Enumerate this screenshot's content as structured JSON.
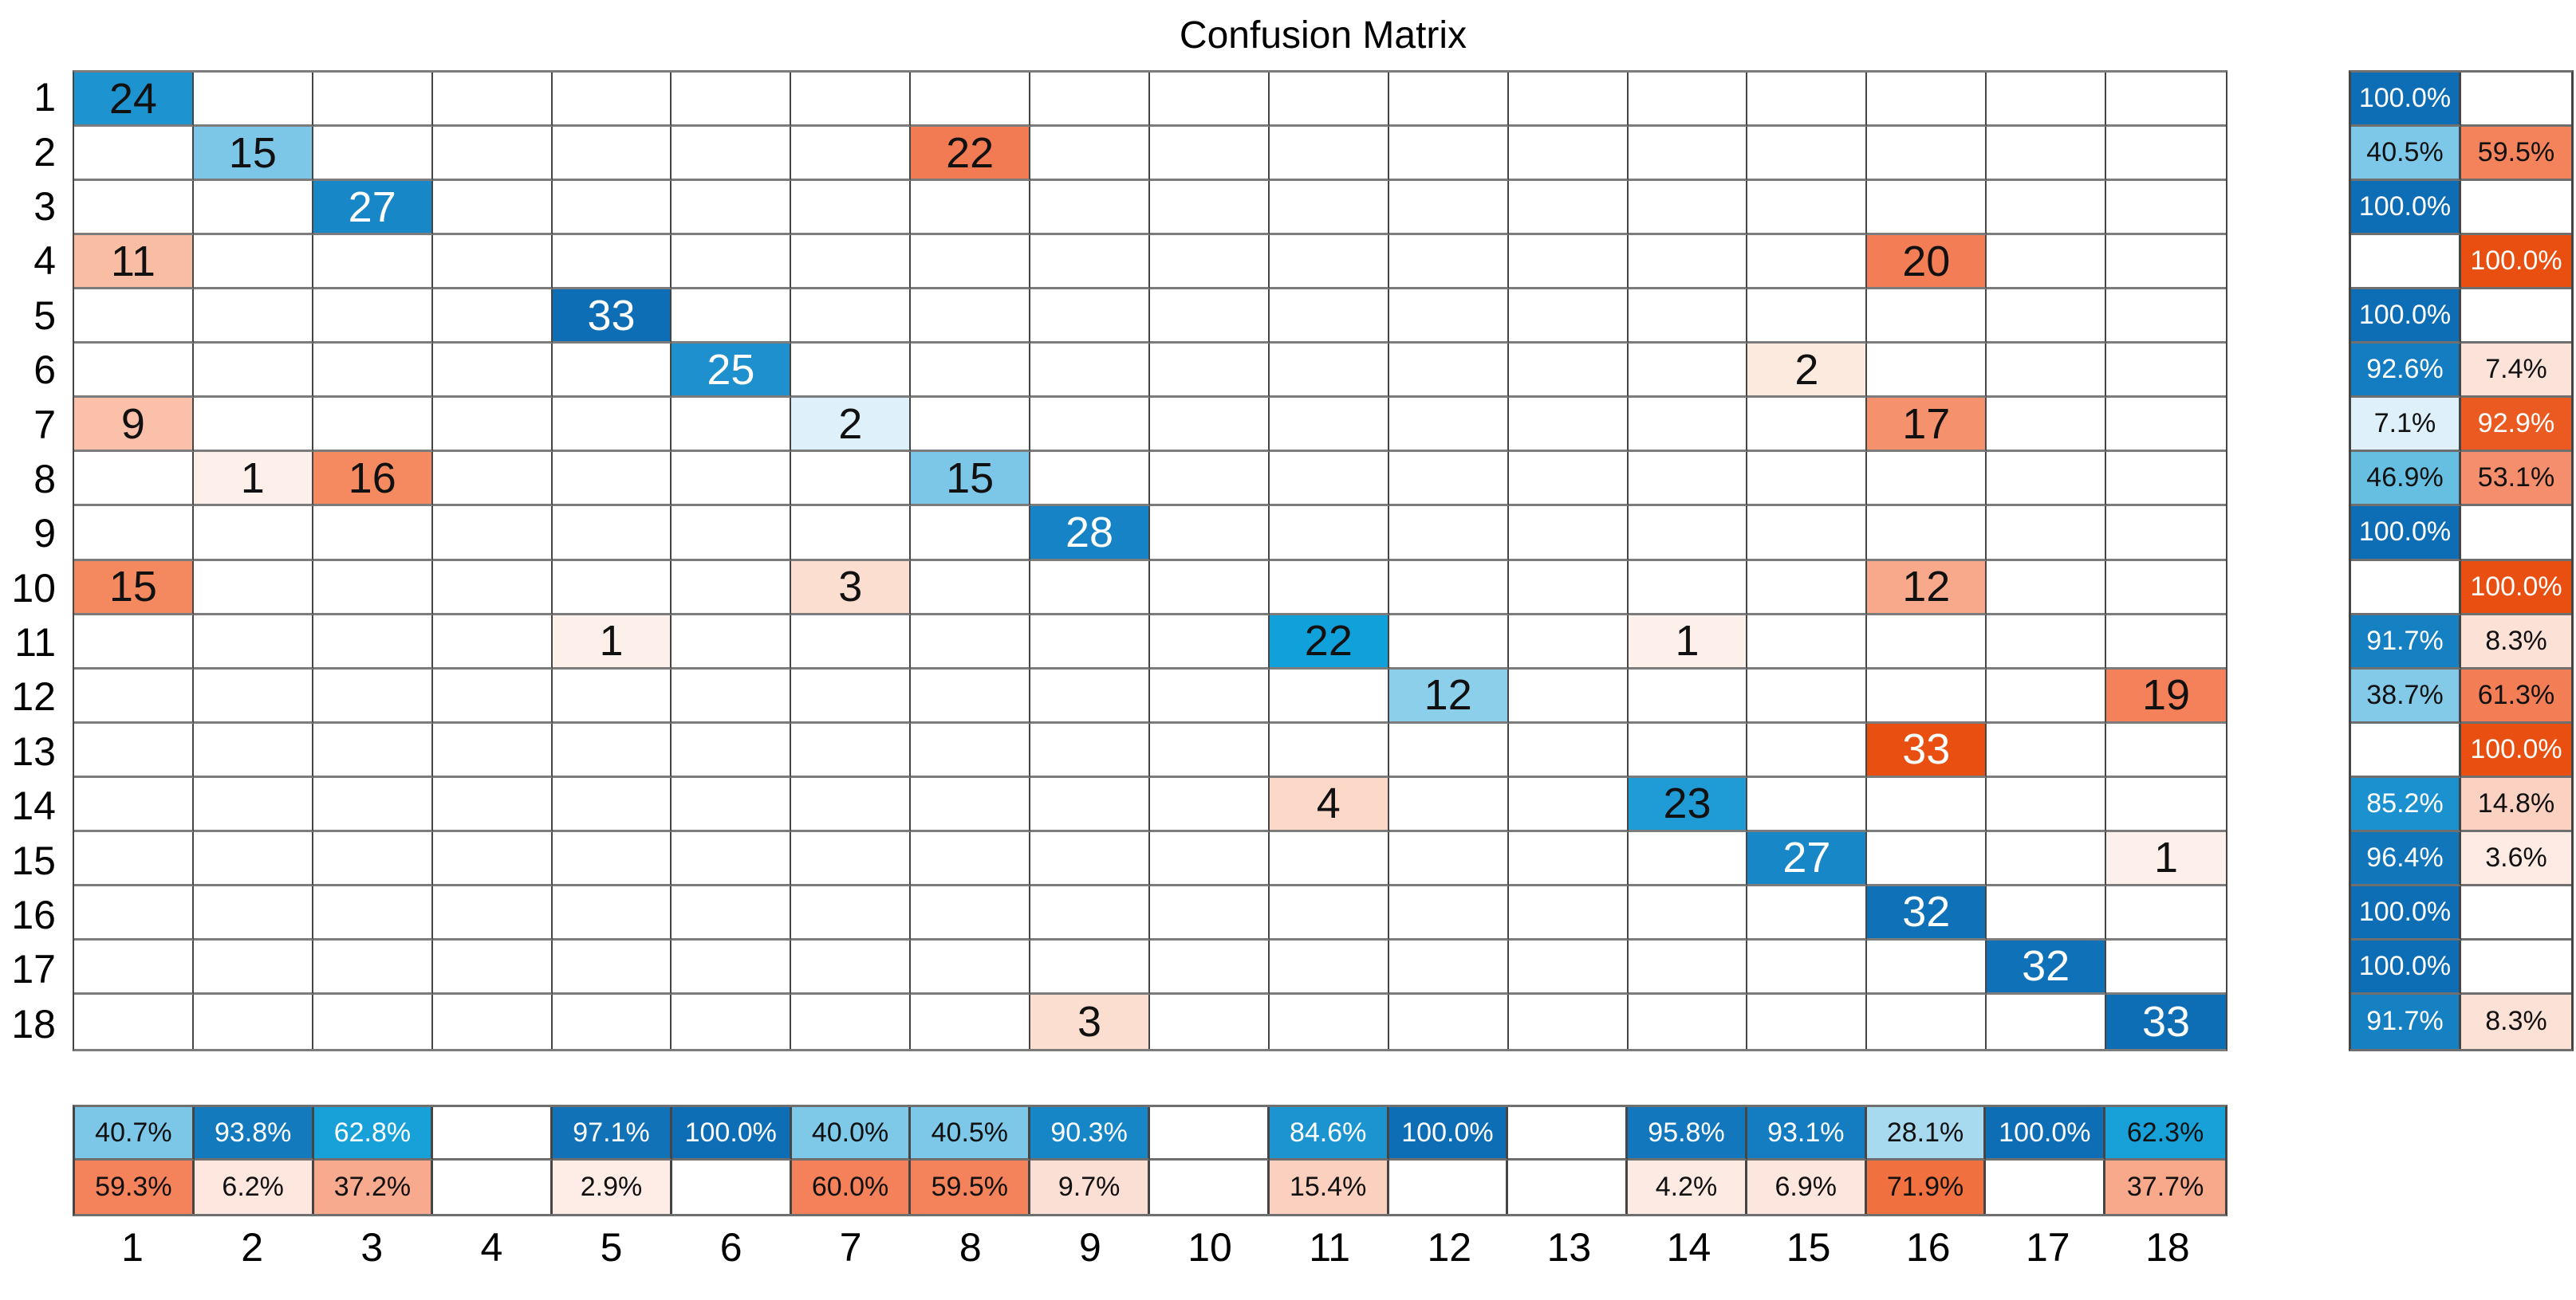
{
  "title": "Confusion Matrix",
  "palette": {
    "diagonal_dark_blue": "#0d6db5",
    "off_diagonal_red": "#e94f10",
    "blank_cell": "#ffffff",
    "grid_line_vertical": "#454545",
    "grid_line_horizontal": "#7c7c7c",
    "text_dark": "#111111",
    "text_light": "#ffffff"
  },
  "chart_data": {
    "type": "heatmap",
    "title": "Confusion Matrix",
    "n_classes": 18,
    "classes": [
      "1",
      "2",
      "3",
      "4",
      "5",
      "6",
      "7",
      "8",
      "9",
      "10",
      "11",
      "12",
      "13",
      "14",
      "15",
      "16",
      "17",
      "18"
    ],
    "max_count": 33,
    "legend_position": "none",
    "grid": "on",
    "matrix_cells": [
      {
        "row": 1,
        "col": 1,
        "value": 24,
        "bg": "#1d94d0",
        "fg": "#111111"
      },
      {
        "row": 2,
        "col": 2,
        "value": 15,
        "bg": "#7cc7e8",
        "fg": "#111111"
      },
      {
        "row": 2,
        "col": 8,
        "value": 22,
        "bg": "#f37b53",
        "fg": "#111111"
      },
      {
        "row": 3,
        "col": 3,
        "value": 27,
        "bg": "#1787c8",
        "fg": "#ffffff"
      },
      {
        "row": 4,
        "col": 1,
        "value": 11,
        "bg": "#f9bda4",
        "fg": "#111111"
      },
      {
        "row": 4,
        "col": 16,
        "value": 20,
        "bg": "#f37e55",
        "fg": "#111111"
      },
      {
        "row": 5,
        "col": 5,
        "value": 33,
        "bg": "#0d6db5",
        "fg": "#ffffff"
      },
      {
        "row": 6,
        "col": 6,
        "value": 25,
        "bg": "#1e90cd",
        "fg": "#ffffff"
      },
      {
        "row": 6,
        "col": 15,
        "value": 2,
        "bg": "#fdeade",
        "fg": "#111111"
      },
      {
        "row": 7,
        "col": 1,
        "value": 9,
        "bg": "#fac0a9",
        "fg": "#111111"
      },
      {
        "row": 7,
        "col": 7,
        "value": 2,
        "bg": "#def0f9",
        "fg": "#111111"
      },
      {
        "row": 7,
        "col": 16,
        "value": 17,
        "bg": "#f6916e",
        "fg": "#111111"
      },
      {
        "row": 8,
        "col": 2,
        "value": 1,
        "bg": "#fdefe9",
        "fg": "#111111"
      },
      {
        "row": 8,
        "col": 3,
        "value": 16,
        "bg": "#f58a61",
        "fg": "#111111"
      },
      {
        "row": 8,
        "col": 8,
        "value": 15,
        "bg": "#7cc7e8",
        "fg": "#111111"
      },
      {
        "row": 9,
        "col": 9,
        "value": 28,
        "bg": "#1583c5",
        "fg": "#ffffff"
      },
      {
        "row": 10,
        "col": 1,
        "value": 15,
        "bg": "#f4885f",
        "fg": "#111111"
      },
      {
        "row": 10,
        "col": 7,
        "value": 3,
        "bg": "#fcded1",
        "fg": "#111111"
      },
      {
        "row": 10,
        "col": 16,
        "value": 12,
        "bg": "#f8a98c",
        "fg": "#111111"
      },
      {
        "row": 11,
        "col": 5,
        "value": 1,
        "bg": "#fdefe9",
        "fg": "#111111"
      },
      {
        "row": 11,
        "col": 11,
        "value": 22,
        "bg": "#11a1da",
        "fg": "#111111"
      },
      {
        "row": 11,
        "col": 14,
        "value": 1,
        "bg": "#fdefe9",
        "fg": "#111111"
      },
      {
        "row": 12,
        "col": 12,
        "value": 12,
        "bg": "#8ccfeb",
        "fg": "#111111"
      },
      {
        "row": 12,
        "col": 18,
        "value": 19,
        "bg": "#f48159",
        "fg": "#111111"
      },
      {
        "row": 13,
        "col": 16,
        "value": 33,
        "bg": "#e94f10",
        "fg": "#ffffff"
      },
      {
        "row": 14,
        "col": 11,
        "value": 4,
        "bg": "#fbd8c8",
        "fg": "#111111"
      },
      {
        "row": 14,
        "col": 14,
        "value": 23,
        "bg": "#1f9cd6",
        "fg": "#111111"
      },
      {
        "row": 15,
        "col": 15,
        "value": 27,
        "bg": "#1787c8",
        "fg": "#ffffff"
      },
      {
        "row": 15,
        "col": 18,
        "value": 1,
        "bg": "#fdefe9",
        "fg": "#111111"
      },
      {
        "row": 16,
        "col": 16,
        "value": 32,
        "bg": "#0f72b9",
        "fg": "#ffffff"
      },
      {
        "row": 17,
        "col": 17,
        "value": 32,
        "bg": "#0f72b9",
        "fg": "#ffffff"
      },
      {
        "row": 18,
        "col": 9,
        "value": 3,
        "bg": "#fcded1",
        "fg": "#111111"
      },
      {
        "row": 18,
        "col": 18,
        "value": 33,
        "bg": "#0d6db5",
        "fg": "#ffffff"
      }
    ],
    "row_summary": [
      {
        "row": 1,
        "cells": [
          {
            "text": "100.0%",
            "bg": "#0d6db5",
            "fg": "#ffffff"
          },
          {
            "text": "",
            "bg": "#ffffff",
            "fg": "#111111"
          }
        ]
      },
      {
        "row": 2,
        "cells": [
          {
            "text": "40.5%",
            "bg": "#7dc8e8",
            "fg": "#111111"
          },
          {
            "text": "59.5%",
            "bg": "#f4825b",
            "fg": "#111111"
          }
        ]
      },
      {
        "row": 3,
        "cells": [
          {
            "text": "100.0%",
            "bg": "#0d6db5",
            "fg": "#ffffff"
          },
          {
            "text": "",
            "bg": "#ffffff",
            "fg": "#111111"
          }
        ]
      },
      {
        "row": 4,
        "cells": [
          {
            "text": "",
            "bg": "#ffffff",
            "fg": "#111111"
          },
          {
            "text": "100.0%",
            "bg": "#e94f10",
            "fg": "#ffffff"
          }
        ]
      },
      {
        "row": 5,
        "cells": [
          {
            "text": "100.0%",
            "bg": "#0d6db5",
            "fg": "#ffffff"
          },
          {
            "text": "",
            "bg": "#ffffff",
            "fg": "#111111"
          }
        ]
      },
      {
        "row": 6,
        "cells": [
          {
            "text": "92.6%",
            "bg": "#147dc1",
            "fg": "#ffffff"
          },
          {
            "text": "7.4%",
            "bg": "#fce3da",
            "fg": "#111111"
          }
        ]
      },
      {
        "row": 7,
        "cells": [
          {
            "text": "7.1%",
            "bg": "#def0f9",
            "fg": "#111111"
          },
          {
            "text": "92.9%",
            "bg": "#eb5a20",
            "fg": "#ffffff"
          }
        ]
      },
      {
        "row": 8,
        "cells": [
          {
            "text": "46.9%",
            "bg": "#66bee1",
            "fg": "#111111"
          },
          {
            "text": "53.1%",
            "bg": "#f58e6c",
            "fg": "#111111"
          }
        ]
      },
      {
        "row": 9,
        "cells": [
          {
            "text": "100.0%",
            "bg": "#0d6db5",
            "fg": "#ffffff"
          },
          {
            "text": "",
            "bg": "#ffffff",
            "fg": "#111111"
          }
        ]
      },
      {
        "row": 10,
        "cells": [
          {
            "text": "",
            "bg": "#ffffff",
            "fg": "#111111"
          },
          {
            "text": "100.0%",
            "bg": "#e94f10",
            "fg": "#ffffff"
          }
        ]
      },
      {
        "row": 11,
        "cells": [
          {
            "text": "91.7%",
            "bg": "#1580c2",
            "fg": "#ffffff"
          },
          {
            "text": "8.3%",
            "bg": "#fce1d7",
            "fg": "#111111"
          }
        ]
      },
      {
        "row": 12,
        "cells": [
          {
            "text": "38.7%",
            "bg": "#83cae9",
            "fg": "#111111"
          },
          {
            "text": "61.3%",
            "bg": "#f37e56",
            "fg": "#111111"
          }
        ]
      },
      {
        "row": 13,
        "cells": [
          {
            "text": "",
            "bg": "#ffffff",
            "fg": "#111111"
          },
          {
            "text": "100.0%",
            "bg": "#e94f10",
            "fg": "#ffffff"
          }
        ]
      },
      {
        "row": 14,
        "cells": [
          {
            "text": "85.2%",
            "bg": "#1b92cf",
            "fg": "#ffffff"
          },
          {
            "text": "14.8%",
            "bg": "#fbd2c2",
            "fg": "#111111"
          }
        ]
      },
      {
        "row": 15,
        "cells": [
          {
            "text": "96.4%",
            "bg": "#1276bb",
            "fg": "#ffffff"
          },
          {
            "text": "3.6%",
            "bg": "#fdebe4",
            "fg": "#111111"
          }
        ]
      },
      {
        "row": 16,
        "cells": [
          {
            "text": "100.0%",
            "bg": "#0d6db5",
            "fg": "#ffffff"
          },
          {
            "text": "",
            "bg": "#ffffff",
            "fg": "#111111"
          }
        ]
      },
      {
        "row": 17,
        "cells": [
          {
            "text": "100.0%",
            "bg": "#0d6db5",
            "fg": "#ffffff"
          },
          {
            "text": "",
            "bg": "#ffffff",
            "fg": "#111111"
          }
        ]
      },
      {
        "row": 18,
        "cells": [
          {
            "text": "91.7%",
            "bg": "#1580c2",
            "fg": "#ffffff"
          },
          {
            "text": "8.3%",
            "bg": "#fce1d7",
            "fg": "#111111"
          }
        ]
      }
    ],
    "col_summary": [
      {
        "col": 1,
        "cells": [
          {
            "text": "40.7%",
            "bg": "#7cc7e8",
            "fg": "#111111"
          },
          {
            "text": "59.3%",
            "bg": "#f4835c",
            "fg": "#111111"
          }
        ]
      },
      {
        "col": 2,
        "cells": [
          {
            "text": "93.8%",
            "bg": "#137abe",
            "fg": "#ffffff"
          },
          {
            "text": "6.2%",
            "bg": "#fde7df",
            "fg": "#111111"
          }
        ]
      },
      {
        "col": 3,
        "cells": [
          {
            "text": "62.8%",
            "bg": "#18a1d9",
            "fg": "#ffffff"
          },
          {
            "text": "37.2%",
            "bg": "#f8aa8e",
            "fg": "#111111"
          }
        ]
      },
      {
        "col": 4,
        "cells": [
          {
            "text": "",
            "bg": "#ffffff",
            "fg": "#111111"
          },
          {
            "text": "",
            "bg": "#ffffff",
            "fg": "#111111"
          }
        ]
      },
      {
        "col": 5,
        "cells": [
          {
            "text": "97.1%",
            "bg": "#1172b8",
            "fg": "#ffffff"
          },
          {
            "text": "2.9%",
            "bg": "#fdede6",
            "fg": "#111111"
          }
        ]
      },
      {
        "col": 6,
        "cells": [
          {
            "text": "100.0%",
            "bg": "#0d6db5",
            "fg": "#ffffff"
          },
          {
            "text": "",
            "bg": "#ffffff",
            "fg": "#111111"
          }
        ]
      },
      {
        "col": 7,
        "cells": [
          {
            "text": "40.0%",
            "bg": "#7ec8e8",
            "fg": "#111111"
          },
          {
            "text": "60.0%",
            "bg": "#f4815a",
            "fg": "#111111"
          }
        ]
      },
      {
        "col": 8,
        "cells": [
          {
            "text": "40.5%",
            "bg": "#7dc8e8",
            "fg": "#111111"
          },
          {
            "text": "59.5%",
            "bg": "#f4825b",
            "fg": "#111111"
          }
        ]
      },
      {
        "col": 9,
        "cells": [
          {
            "text": "90.3%",
            "bg": "#1786c7",
            "fg": "#ffffff"
          },
          {
            "text": "9.7%",
            "bg": "#fcdfd4",
            "fg": "#111111"
          }
        ]
      },
      {
        "col": 10,
        "cells": [
          {
            "text": "",
            "bg": "#ffffff",
            "fg": "#111111"
          },
          {
            "text": "",
            "bg": "#ffffff",
            "fg": "#111111"
          }
        ]
      },
      {
        "col": 11,
        "cells": [
          {
            "text": "84.6%",
            "bg": "#1c94d0",
            "fg": "#ffffff"
          },
          {
            "text": "15.4%",
            "bg": "#fbd0bf",
            "fg": "#111111"
          }
        ]
      },
      {
        "col": 12,
        "cells": [
          {
            "text": "100.0%",
            "bg": "#0d6db5",
            "fg": "#ffffff"
          },
          {
            "text": "",
            "bg": "#ffffff",
            "fg": "#111111"
          }
        ]
      },
      {
        "col": 13,
        "cells": [
          {
            "text": "",
            "bg": "#ffffff",
            "fg": "#111111"
          },
          {
            "text": "",
            "bg": "#ffffff",
            "fg": "#111111"
          }
        ]
      },
      {
        "col": 14,
        "cells": [
          {
            "text": "95.8%",
            "bg": "#1277bc",
            "fg": "#ffffff"
          },
          {
            "text": "4.2%",
            "bg": "#fdeae2",
            "fg": "#111111"
          }
        ]
      },
      {
        "col": 15,
        "cells": [
          {
            "text": "93.1%",
            "bg": "#147cc0",
            "fg": "#ffffff"
          },
          {
            "text": "6.9%",
            "bg": "#fde6dd",
            "fg": "#111111"
          }
        ]
      },
      {
        "col": 16,
        "cells": [
          {
            "text": "28.1%",
            "bg": "#a7daef",
            "fg": "#111111"
          },
          {
            "text": "71.9%",
            "bg": "#f0703f",
            "fg": "#111111"
          }
        ]
      },
      {
        "col": 17,
        "cells": [
          {
            "text": "100.0%",
            "bg": "#0d6db5",
            "fg": "#ffffff"
          },
          {
            "text": "",
            "bg": "#ffffff",
            "fg": "#111111"
          }
        ]
      },
      {
        "col": 18,
        "cells": [
          {
            "text": "62.3%",
            "bg": "#18a1d9",
            "fg": "#111111"
          },
          {
            "text": "37.7%",
            "bg": "#f8a98c",
            "fg": "#111111"
          }
        ]
      }
    ]
  }
}
